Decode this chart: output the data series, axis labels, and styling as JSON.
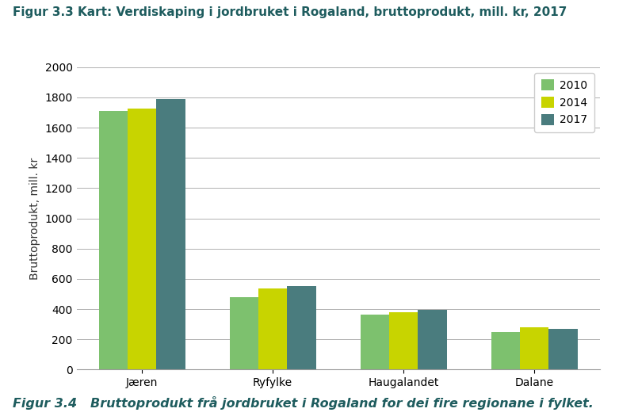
{
  "title": "Figur 3.3 Kart: Verdiskaping i jordbruket i Rogaland, bruttoprodukt, mill. kr, 2017",
  "subtitle": "Figur 3.4   Bruttoprodukt frå jordbruket i Rogaland for dei fire regionane i fylket.",
  "ylabel": "Bruttoprodukt, mill. kr",
  "categories": [
    "Jæren",
    "Ryfylke",
    "Haugalandet",
    "Dalane"
  ],
  "series": [
    {
      "label": "2010",
      "color": "#7dc16e",
      "values": [
        1710,
        480,
        365,
        248
      ]
    },
    {
      "label": "2014",
      "color": "#c8d400",
      "values": [
        1725,
        535,
        380,
        278
      ]
    },
    {
      "label": "2017",
      "color": "#4a7c7e",
      "values": [
        1790,
        550,
        395,
        270
      ]
    }
  ],
  "ylim": [
    0,
    2000
  ],
  "yticks": [
    0,
    200,
    400,
    600,
    800,
    1000,
    1200,
    1400,
    1600,
    1800,
    2000
  ],
  "background_color": "#ffffff",
  "title_color": "#1e5c5e",
  "subtitle_color": "#1e5c5e",
  "grid_color": "#b0b0b0",
  "bar_width": 0.22,
  "title_fontsize": 11.0,
  "subtitle_fontsize": 11.5,
  "ylabel_fontsize": 10,
  "tick_fontsize": 10,
  "legend_fontsize": 10
}
